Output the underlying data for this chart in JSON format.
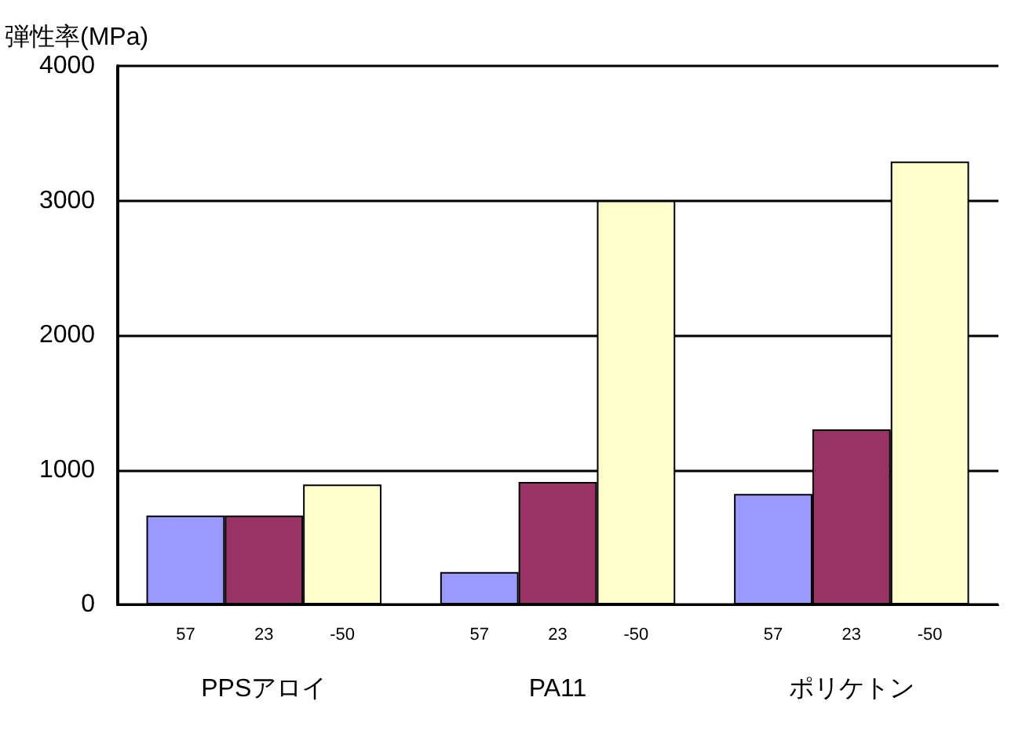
{
  "chart_data": {
    "type": "bar",
    "ylabel": "弾性率(MPa)",
    "categories": [
      "PPSアロイ",
      "PA11",
      "ポリケトン"
    ],
    "series": [
      {
        "name": "57",
        "color": "#9999ff",
        "values": [
          660,
          240,
          820
        ]
      },
      {
        "name": "23",
        "color": "#993366",
        "values": [
          660,
          910,
          1300
        ]
      },
      {
        "name": "-50",
        "color": "#ffffcc",
        "values": [
          890,
          3000,
          3290
        ]
      }
    ],
    "ylim": [
      0,
      4000
    ],
    "yticks": [
      0,
      1000,
      2000,
      3000,
      4000
    ],
    "grid": "y",
    "legend": false
  }
}
